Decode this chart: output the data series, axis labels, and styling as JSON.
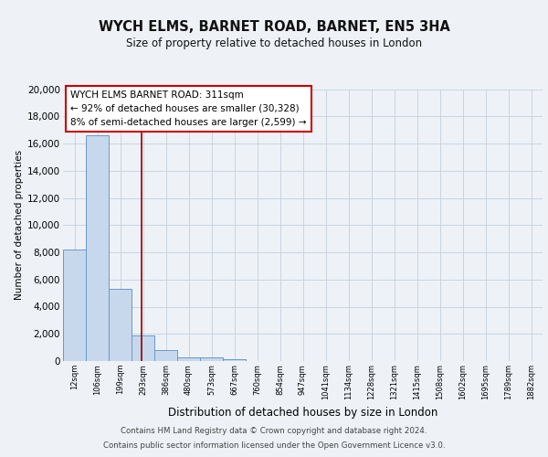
{
  "title": "WYCH ELMS, BARNET ROAD, BARNET, EN5 3HA",
  "subtitle": "Size of property relative to detached houses in London",
  "xlabel": "Distribution of detached houses by size in London",
  "ylabel": "Number of detached properties",
  "categories": [
    "12sqm",
    "106sqm",
    "199sqm",
    "293sqm",
    "386sqm",
    "480sqm",
    "573sqm",
    "667sqm",
    "760sqm",
    "854sqm",
    "947sqm",
    "1041sqm",
    "1134sqm",
    "1228sqm",
    "1321sqm",
    "1415sqm",
    "1508sqm",
    "1602sqm",
    "1695sqm",
    "1789sqm",
    "1882sqm"
  ],
  "bar_heights": [
    8200,
    16600,
    5300,
    1850,
    800,
    270,
    280,
    150,
    0,
    0,
    0,
    0,
    0,
    0,
    0,
    0,
    0,
    0,
    0,
    0,
    0
  ],
  "bar_color": "#c8d8ec",
  "bar_edge_color": "#6699cc",
  "vline_x": 2.93,
  "vline_color": "#8b0000",
  "annotation_title": "WYCH ELMS BARNET ROAD: 311sqm",
  "annotation_line1": "← 92% of detached houses are smaller (30,328)",
  "annotation_line2": "8% of semi-detached houses are larger (2,599) →",
  "annotation_box_color": "#ffffff",
  "annotation_box_edge": "#cc0000",
  "ylim": [
    0,
    20000
  ],
  "yticks": [
    0,
    2000,
    4000,
    6000,
    8000,
    10000,
    12000,
    14000,
    16000,
    18000,
    20000
  ],
  "grid_color": "#c8d4e0",
  "footer_line1": "Contains HM Land Registry data © Crown copyright and database right 2024.",
  "footer_line2": "Contains public sector information licensed under the Open Government Licence v3.0.",
  "bg_color": "#eef2f7",
  "plot_bg_color": "#eef2f7"
}
